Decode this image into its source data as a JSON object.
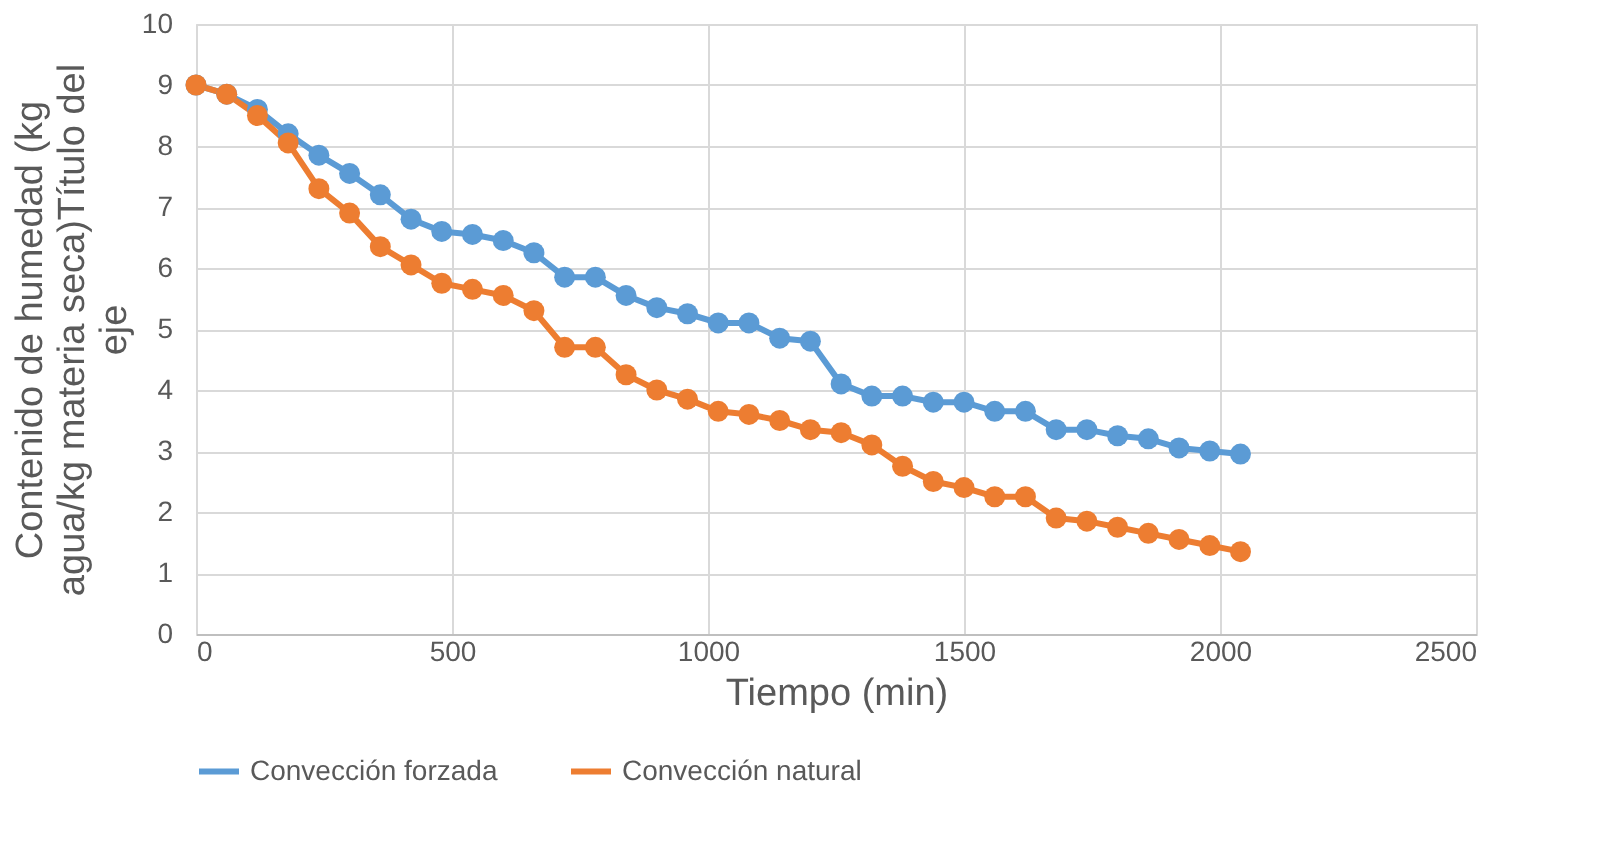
{
  "chart_data": {
    "type": "line",
    "xlabel": "Tiempo (min)",
    "ylabel": "Contenido de humedad (kg agua/kg materia seca)Título del eje",
    "x": [
      0,
      60,
      120,
      180,
      240,
      300,
      360,
      420,
      480,
      540,
      600,
      660,
      720,
      780,
      840,
      900,
      960,
      1020,
      1080,
      1140,
      1200,
      1260,
      1320,
      1380,
      1440,
      1500,
      1560,
      1620,
      1680,
      1740,
      1800,
      1860,
      1920,
      1980,
      2040
    ],
    "series": [
      {
        "name": "Convección forzada",
        "color": "#5b9bd5",
        "values": [
          9.0,
          8.85,
          8.6,
          8.2,
          7.85,
          7.55,
          7.2,
          6.8,
          6.6,
          6.55,
          6.45,
          6.25,
          5.85,
          5.85,
          5.55,
          5.35,
          5.25,
          5.1,
          5.1,
          4.85,
          4.8,
          4.1,
          3.9,
          3.9,
          3.8,
          3.8,
          3.65,
          3.65,
          3.35,
          3.35,
          3.25,
          3.2,
          3.05,
          3.0,
          2.95
        ]
      },
      {
        "name": "Convección natural",
        "color": "#ed7d31",
        "values": [
          9.0,
          8.85,
          8.5,
          8.05,
          7.3,
          6.9,
          6.35,
          6.05,
          5.75,
          5.65,
          5.55,
          5.3,
          4.7,
          4.7,
          4.25,
          4.0,
          3.85,
          3.65,
          3.6,
          3.5,
          3.35,
          3.3,
          3.1,
          2.75,
          2.5,
          2.4,
          2.25,
          2.25,
          1.9,
          1.85,
          1.75,
          1.65,
          1.55,
          1.45,
          1.35
        ]
      }
    ],
    "xlim": [
      0,
      2500
    ],
    "xticks": [
      0,
      500,
      1000,
      1500,
      2000,
      2500
    ],
    "ylim": [
      0,
      10
    ],
    "yticks": [
      0,
      1,
      2,
      3,
      4,
      5,
      6,
      7,
      8,
      9,
      10
    ],
    "grid": true,
    "legend": "bottom",
    "marker": "circle",
    "line_style": "solid"
  }
}
